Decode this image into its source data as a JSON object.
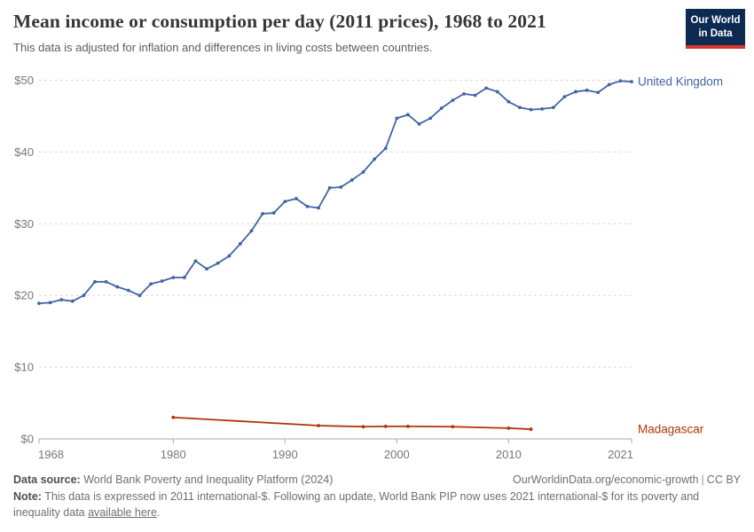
{
  "header": {
    "title": "Mean income or consumption per day (2011 prices), 1968 to 2021",
    "subtitle": "This data is adjusted for inflation and differences in living costs between countries.",
    "logo_line1": "Our World",
    "logo_line2": "in Data"
  },
  "chart_data": {
    "type": "line",
    "title": "Mean income or consumption per day (2011 prices), 1968 to 2021",
    "xlabel": "",
    "ylabel": "",
    "xlim": [
      1968,
      2021
    ],
    "ylim": [
      0,
      50
    ],
    "grid": true,
    "legend_position": "end-of-line-labels",
    "x_ticks": [
      {
        "value": 1968,
        "label": "1968"
      },
      {
        "value": 1980,
        "label": "1980"
      },
      {
        "value": 1990,
        "label": "1990"
      },
      {
        "value": 2000,
        "label": "2000"
      },
      {
        "value": 2010,
        "label": "2010"
      },
      {
        "value": 2021,
        "label": "2021"
      }
    ],
    "y_ticks": [
      {
        "value": 0,
        "label": "$0"
      },
      {
        "value": 10,
        "label": "$10"
      },
      {
        "value": 20,
        "label": "$20"
      },
      {
        "value": 30,
        "label": "$30"
      },
      {
        "value": 40,
        "label": "$40"
      },
      {
        "value": 50,
        "label": "$50"
      }
    ],
    "series": [
      {
        "name": "United Kingdom",
        "color": "#4164a4",
        "x": [
          1968,
          1969,
          1970,
          1971,
          1972,
          1973,
          1974,
          1975,
          1976,
          1977,
          1978,
          1979,
          1980,
          1981,
          1982,
          1983,
          1984,
          1985,
          1986,
          1987,
          1988,
          1989,
          1990,
          1991,
          1992,
          1993,
          1994,
          1995,
          1996,
          1997,
          1998,
          1999,
          2000,
          2001,
          2002,
          2003,
          2004,
          2005,
          2006,
          2007,
          2008,
          2009,
          2010,
          2011,
          2012,
          2013,
          2014,
          2015,
          2016,
          2017,
          2018,
          2019,
          2020,
          2021
        ],
        "values": [
          18.9,
          19.0,
          19.4,
          19.2,
          20.0,
          21.9,
          21.9,
          21.2,
          20.7,
          20.0,
          21.6,
          22.0,
          22.5,
          22.5,
          24.8,
          23.7,
          24.5,
          25.5,
          27.2,
          29.0,
          31.4,
          31.5,
          33.1,
          33.5,
          32.4,
          32.2,
          35.0,
          35.1,
          36.1,
          37.2,
          39.0,
          40.5,
          44.7,
          45.2,
          43.9,
          44.7,
          46.1,
          47.2,
          48.1,
          47.9,
          48.9,
          48.4,
          47.0,
          46.2,
          45.9,
          46.0,
          46.2,
          47.7,
          48.4,
          48.6,
          48.3,
          49.4,
          49.9,
          49.8
        ]
      },
      {
        "name": "Madagascar",
        "color": "#b13507",
        "x": [
          1980,
          1993,
          1997,
          1999,
          2001,
          2005,
          2010,
          2012
        ],
        "values": [
          3.0,
          1.85,
          1.7,
          1.75,
          1.75,
          1.7,
          1.5,
          1.35
        ]
      }
    ]
  },
  "footer": {
    "data_source_label": "Data source:",
    "data_source_text": "World Bank Poverty and Inequality Platform (2024)",
    "attribution_url": "OurWorldinData.org/economic-growth",
    "separator": "|",
    "license": "CC BY",
    "note_label": "Note:",
    "note_before_link": "This data is expressed in 2011 international-$. Following an update, World Bank PIP now uses 2021 international-$ for its poverty and inequality data",
    "note_link": "available here",
    "note_after_link": "."
  },
  "colors": {
    "united_kingdom": "#4164a4",
    "madagascar": "#b13507",
    "gridline": "#dadada",
    "axis": "#a8a8a8",
    "tick_label": "#777777",
    "logo_bg": "#0c2a52",
    "logo_bar": "#dc352c"
  }
}
